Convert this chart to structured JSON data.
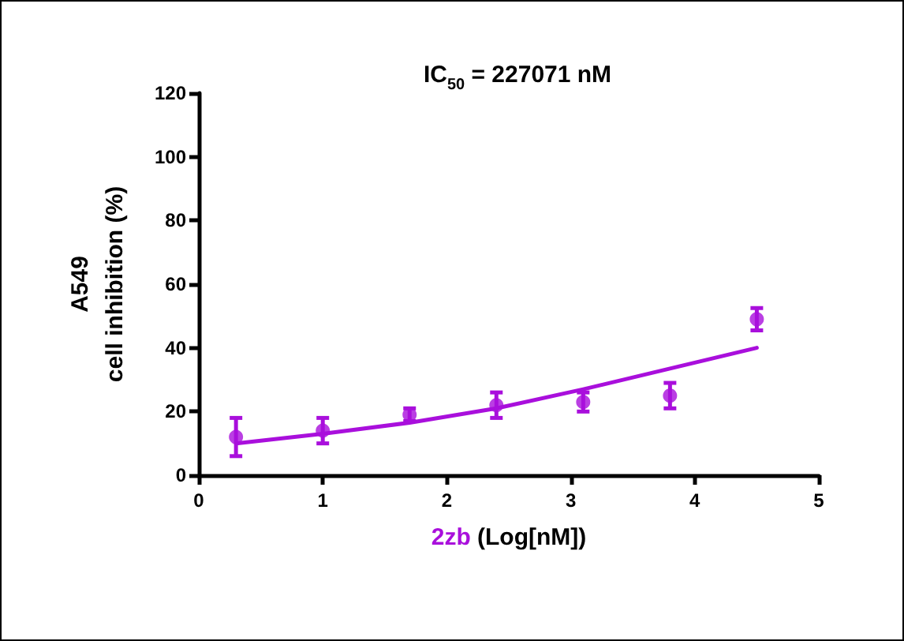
{
  "chart_data": {
    "type": "scatter",
    "title": "IC$_{50}$ = 227071 nM",
    "xlabel": "2zb (Log[nM])",
    "ylabel": "A549\ncell inhibition (%)",
    "series": [
      {
        "color": "#a90fdc",
        "marker": "circle",
        "x": [
          0.3,
          1.0,
          1.7,
          2.4,
          3.1,
          3.8,
          4.5
        ],
        "values": [
          12,
          14,
          19,
          22,
          23,
          25,
          49
        ],
        "errors": [
          6,
          4,
          2,
          4,
          3,
          4,
          3.5
        ]
      },
      {
        "type": "line",
        "color": "#a90fdc",
        "marker": "none",
        "x": [
          0.3,
          1.0,
          1.7,
          2.4,
          3.1,
          3.8,
          4.5
        ],
        "values": [
          10,
          13,
          16.5,
          21,
          27,
          33.5,
          40
        ]
      }
    ],
    "xlim": [
      0,
      5
    ],
    "xticks": [
      0,
      1,
      2,
      3,
      4,
      5
    ],
    "ylim": [
      0,
      120
    ],
    "yticks": [
      0,
      20,
      40,
      60,
      80,
      100,
      120
    ],
    "grid": false,
    "line_style": "solid"
  }
}
